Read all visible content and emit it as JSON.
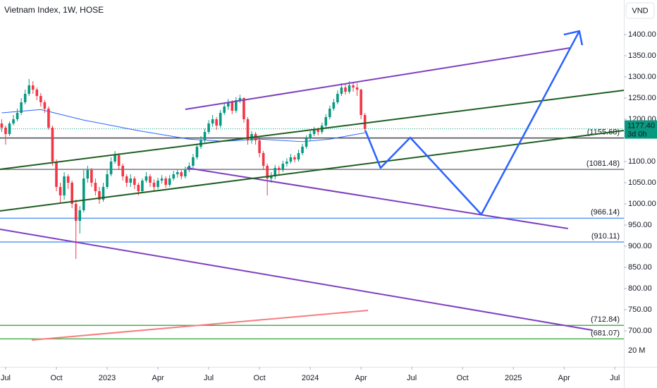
{
  "chart_data": {
    "type": "candlestick",
    "title": "Vietnam Index, 1W, HOSE",
    "currency": "VND",
    "xlim": [
      -1.44,
      158.3
    ],
    "ylim": [
      615,
      1481.7
    ],
    "xticks": [
      {
        "value": 0,
        "label": "Jul"
      },
      {
        "value": 13,
        "label": "Oct"
      },
      {
        "value": 26,
        "label": "2023"
      },
      {
        "value": 39,
        "label": "Apr"
      },
      {
        "value": 52,
        "label": "Jul"
      },
      {
        "value": 65,
        "label": "Oct"
      },
      {
        "value": 78,
        "label": "2024"
      },
      {
        "value": 91,
        "label": "Apr"
      },
      {
        "value": 104,
        "label": "Jul"
      },
      {
        "value": 117,
        "label": "Oct"
      },
      {
        "value": 130,
        "label": "2025"
      },
      {
        "value": 143,
        "label": "Apr"
      },
      {
        "value": 156,
        "label": "Jul"
      }
    ],
    "yticks": [
      {
        "value": 1400,
        "label": "1400.00"
      },
      {
        "value": 1350,
        "label": "1350.00"
      },
      {
        "value": 1300,
        "label": "1300.00"
      },
      {
        "value": 1250,
        "label": "1250.00"
      },
      {
        "value": 1200,
        "label": "1200.00"
      },
      {
        "value": 1100,
        "label": "1100.00"
      },
      {
        "value": 1050,
        "label": "1050.00"
      },
      {
        "value": 1000,
        "label": "1000.00"
      },
      {
        "value": 950,
        "label": "950.00"
      },
      {
        "value": 900,
        "label": "900.00"
      },
      {
        "value": 850,
        "label": "850.00"
      },
      {
        "value": 800,
        "label": "800.00"
      },
      {
        "value": 750,
        "label": "750.00"
      },
      {
        "value": 700,
        "label": "700.00"
      }
    ],
    "volume_tick": "20 M",
    "up_color": "#089981",
    "down_color": "#f23645",
    "candles": {
      "x": [
        -1,
        0,
        1,
        2,
        3,
        4,
        5,
        6,
        7,
        8,
        9,
        10,
        11,
        12,
        13,
        14,
        15,
        16,
        17,
        18,
        19,
        20,
        21,
        22,
        23,
        24,
        25,
        26,
        27,
        28,
        29,
        30,
        31,
        32,
        33,
        34,
        35,
        36,
        37,
        38,
        39,
        40,
        41,
        42,
        43,
        44,
        45,
        46,
        47,
        48,
        49,
        50,
        51,
        52,
        53,
        54,
        55,
        56,
        57,
        58,
        59,
        60,
        61,
        62,
        63,
        64,
        65,
        66,
        67,
        68,
        69,
        70,
        71,
        72,
        73,
        74,
        75,
        76,
        77,
        78,
        79,
        80,
        81,
        82,
        83,
        84,
        85,
        86,
        87,
        88,
        89,
        90,
        91,
        92
      ],
      "open": [
        1190,
        1180,
        1165,
        1190,
        1200,
        1215,
        1240,
        1260,
        1280,
        1270,
        1255,
        1240,
        1225,
        1180,
        1100,
        1040,
        1020,
        1065,
        1050,
        1000,
        960,
        985,
        1060,
        1080,
        1050,
        1030,
        1010,
        1040,
        1070,
        1100,
        1115,
        1090,
        1065,
        1050,
        1060,
        1045,
        1030,
        1055,
        1065,
        1050,
        1040,
        1055,
        1060,
        1045,
        1060,
        1070,
        1075,
        1065,
        1080,
        1090,
        1110,
        1135,
        1150,
        1170,
        1190,
        1200,
        1185,
        1215,
        1230,
        1240,
        1220,
        1245,
        1250,
        1200,
        1150,
        1165,
        1150,
        1120,
        1090,
        1060,
        1065,
        1085,
        1080,
        1095,
        1100,
        1110,
        1105,
        1120,
        1135,
        1155,
        1165,
        1175,
        1170,
        1185,
        1205,
        1225,
        1240,
        1260,
        1275,
        1265,
        1280,
        1275,
        1270,
        1210
      ],
      "high": [
        1200,
        1185,
        1195,
        1210,
        1225,
        1250,
        1270,
        1295,
        1290,
        1275,
        1262,
        1245,
        1230,
        1185,
        1105,
        1050,
        1075,
        1070,
        1055,
        1010,
        995,
        1080,
        1090,
        1085,
        1060,
        1040,
        1050,
        1080,
        1110,
        1125,
        1120,
        1095,
        1070,
        1070,
        1065,
        1050,
        1060,
        1075,
        1070,
        1058,
        1062,
        1068,
        1065,
        1068,
        1078,
        1082,
        1080,
        1088,
        1098,
        1118,
        1142,
        1160,
        1178,
        1198,
        1210,
        1205,
        1222,
        1240,
        1248,
        1245,
        1252,
        1258,
        1252,
        1205,
        1172,
        1170,
        1155,
        1125,
        1095,
        1075,
        1092,
        1090,
        1102,
        1108,
        1118,
        1115,
        1128,
        1142,
        1162,
        1172,
        1182,
        1180,
        1192,
        1212,
        1232,
        1248,
        1268,
        1285,
        1282,
        1290,
        1288,
        1285,
        1272,
        1215
      ],
      "low": [
        1170,
        1140,
        1160,
        1185,
        1195,
        1210,
        1235,
        1255,
        1260,
        1245,
        1230,
        1215,
        1175,
        1090,
        1030,
        1000,
        1010,
        1035,
        990,
        870,
        930,
        980,
        1050,
        1040,
        1020,
        1000,
        1005,
        1035,
        1065,
        1095,
        1080,
        1055,
        1040,
        1040,
        1035,
        1020,
        1025,
        1050,
        1040,
        1030,
        1035,
        1048,
        1038,
        1040,
        1055,
        1062,
        1058,
        1060,
        1075,
        1085,
        1105,
        1130,
        1145,
        1165,
        1182,
        1175,
        1180,
        1210,
        1222,
        1212,
        1215,
        1238,
        1192,
        1140,
        1142,
        1140,
        1110,
        1080,
        1020,
        1050,
        1058,
        1070,
        1075,
        1088,
        1095,
        1098,
        1100,
        1115,
        1130,
        1148,
        1160,
        1162,
        1165,
        1180,
        1200,
        1220,
        1235,
        1255,
        1258,
        1260,
        1265,
        1255,
        1200,
        1170
      ],
      "close": [
        1180,
        1165,
        1190,
        1200,
        1215,
        1240,
        1260,
        1280,
        1270,
        1255,
        1240,
        1225,
        1180,
        1100,
        1040,
        1020,
        1065,
        1050,
        1000,
        960,
        985,
        1060,
        1080,
        1050,
        1030,
        1010,
        1040,
        1070,
        1100,
        1115,
        1090,
        1065,
        1050,
        1060,
        1045,
        1030,
        1055,
        1065,
        1050,
        1040,
        1055,
        1060,
        1045,
        1060,
        1070,
        1075,
        1065,
        1080,
        1090,
        1110,
        1135,
        1150,
        1170,
        1190,
        1200,
        1185,
        1215,
        1230,
        1240,
        1220,
        1245,
        1250,
        1200,
        1150,
        1165,
        1150,
        1120,
        1090,
        1060,
        1065,
        1085,
        1080,
        1095,
        1100,
        1110,
        1105,
        1120,
        1135,
        1155,
        1165,
        1175,
        1170,
        1185,
        1205,
        1225,
        1240,
        1260,
        1275,
        1265,
        1280,
        1275,
        1270,
        1210,
        1177.4
      ]
    },
    "moving_average": {
      "color": "#2962ff",
      "x": [
        -1,
        9,
        20,
        34,
        47,
        56,
        65,
        76,
        83,
        92
      ],
      "values": [
        1215,
        1223,
        1198,
        1173,
        1153,
        1148,
        1153,
        1147,
        1153,
        1168
      ]
    },
    "levels": [
      {
        "value": 1155.68,
        "label": "(1155.68)",
        "color": "#434651"
      },
      {
        "value": 1081.48,
        "label": "(1081.48)",
        "color": "#787b86"
      },
      {
        "value": 966.14,
        "label": "(966.14)",
        "color": "#5b9cf6"
      },
      {
        "value": 910.11,
        "label": "(910.11)",
        "color": "#5b9cf6"
      },
      {
        "value": 712.84,
        "label": "(712.84)",
        "color": "#4caf50"
      },
      {
        "value": 681.07,
        "label": "(681.07)",
        "color": "#4caf50"
      }
    ],
    "drawings": [
      {
        "color": "#7e3fbf",
        "points": [
          [
            46,
            1223.3
          ],
          [
            144.4,
            1368.3
          ]
        ]
      },
      {
        "color": "#7e3fbf",
        "points": [
          [
            46.4,
            1085
          ],
          [
            144,
            941.7
          ]
        ]
      },
      {
        "color": "#7e3fbf",
        "points": [
          [
            -1.44,
            940
          ],
          [
            150.2,
            701.7
          ]
        ]
      },
      {
        "color": "#1e5e20",
        "points": [
          [
            -1.44,
            1081.7
          ],
          [
            158.3,
            1268.3
          ]
        ]
      },
      {
        "color": "#1e5e20",
        "points": [
          [
            -1.44,
            983.3
          ],
          [
            158.3,
            1173.3
          ]
        ]
      },
      {
        "color": "#f77c80",
        "points": [
          [
            6.7,
            678.3
          ],
          [
            92.8,
            748.3
          ]
        ]
      },
      {
        "color": "#2962ff",
        "points": [
          [
            92.1,
            1173.3
          ],
          [
            96,
            1085
          ],
          [
            103.6,
            1156.7
          ],
          [
            121.8,
            975
          ],
          [
            146.9,
            1408.3
          ]
        ]
      }
    ],
    "last_price": {
      "value": 1177.4,
      "label": "1177.40"
    },
    "countdown": "3d 0h"
  }
}
